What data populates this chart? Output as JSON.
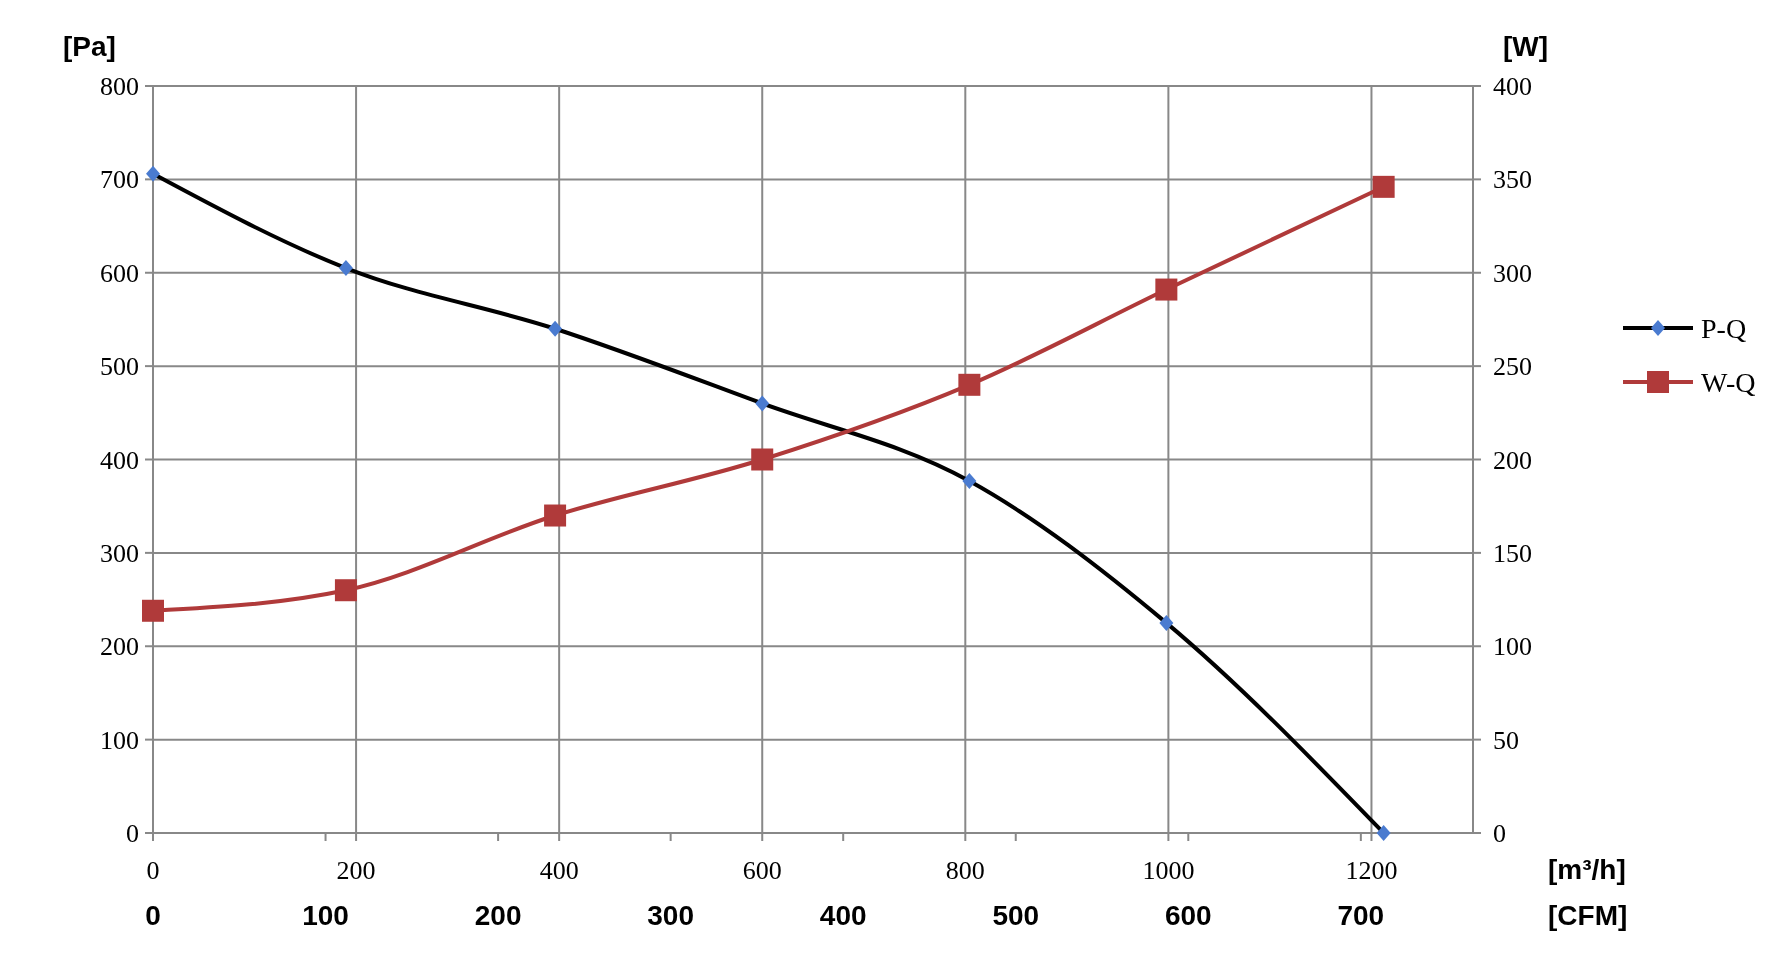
{
  "chart_data": {
    "type": "line",
    "xlabel": "[m³/h]",
    "ylabel": "[Pa]",
    "y2label": "[W]",
    "x2label": "[CFM]",
    "xlim": [
      0,
      1300
    ],
    "xticks": [
      0,
      200,
      400,
      600,
      800,
      1000,
      1200
    ],
    "x2lim": [
      0,
      765
    ],
    "x2ticks": [
      0,
      100,
      200,
      300,
      400,
      500,
      600,
      700
    ],
    "ylim": [
      0,
      800
    ],
    "yticks": [
      0,
      100,
      200,
      300,
      400,
      500,
      600,
      700,
      800
    ],
    "y2lim": [
      0,
      400
    ],
    "y2ticks": [
      0,
      50,
      100,
      150,
      200,
      250,
      300,
      350,
      400
    ],
    "grid": true,
    "legend": "right",
    "line_style": "solid",
    "series": [
      {
        "name": "P-Q",
        "color": "#000000",
        "marker": "diamond",
        "x": [
          0,
          190,
          396,
          600,
          804,
          998,
          1212
        ],
        "values": [
          706,
          605,
          540,
          460,
          377,
          225,
          0
        ]
      },
      {
        "name": "W-Q",
        "color": "#b03a3a",
        "marker": "square",
        "axis": "y2",
        "x": [
          0,
          190,
          396,
          600,
          804,
          998,
          1212
        ],
        "values": [
          119,
          130,
          170,
          200,
          240,
          291,
          346
        ]
      }
    ]
  }
}
